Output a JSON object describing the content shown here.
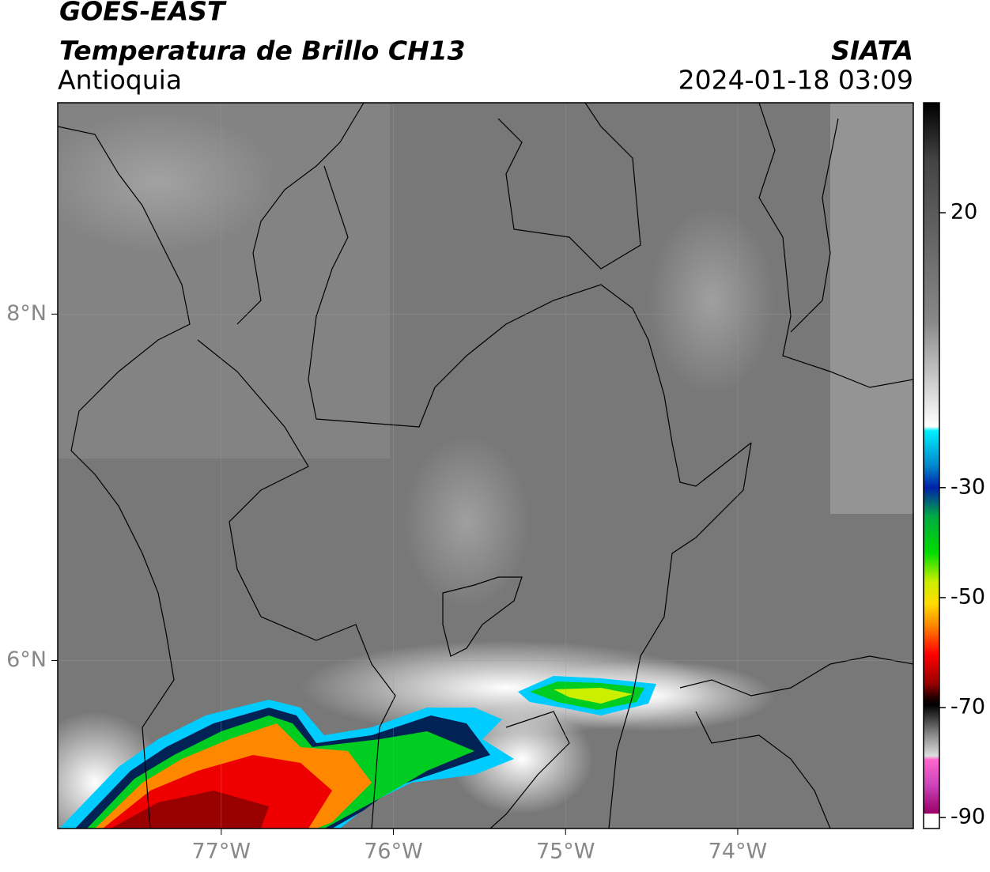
{
  "header": {
    "title": "GOES-EAST",
    "subtitle": "Temperatura de Brillo CH13",
    "region": "Antioquia",
    "source": "SIATA",
    "datetime": "2024-01-18 03:09"
  },
  "map": {
    "lon_range": [
      -77.95,
      -72.98
    ],
    "lat_range": [
      5.03,
      9.22
    ],
    "lon_ticks": [
      {
        "value": -77,
        "label": "77°W"
      },
      {
        "value": -76,
        "label": "76°W"
      },
      {
        "value": -75,
        "label": "75°W"
      },
      {
        "value": -74,
        "label": "74°W"
      }
    ],
    "lat_ticks": [
      {
        "value": 8,
        "label": "8°N"
      },
      {
        "value": 6,
        "label": "6°N"
      }
    ]
  },
  "colorbar": {
    "range": [
      -92,
      40
    ],
    "ticks": [
      20,
      -30,
      -50,
      -70,
      -90
    ]
  }
}
